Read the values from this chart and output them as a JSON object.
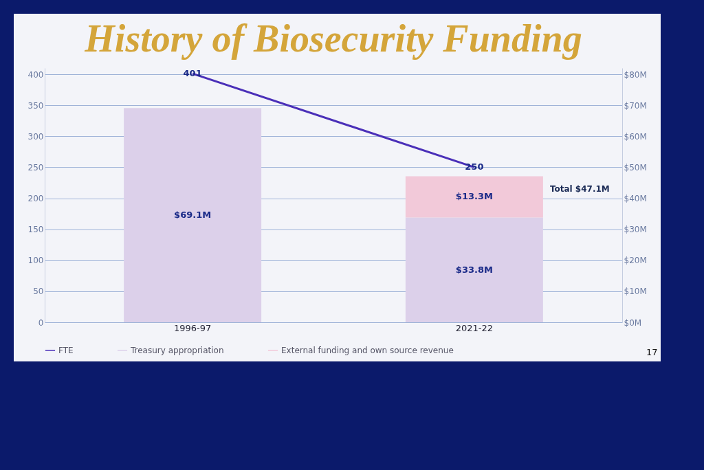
{
  "chart_data": {
    "type": "bar",
    "title": "History of Biosecurity Funding",
    "categories": [
      "1996-97",
      "2021-22"
    ],
    "stacked": true,
    "series": [
      {
        "name": "FTE",
        "type": "line",
        "axis": "y",
        "color": "#4a2fb8",
        "values": [
          401,
          250
        ],
        "value_labels": [
          "401",
          "250"
        ]
      },
      {
        "name": "Treasury appropriation",
        "axis": "y2",
        "color": "#dcd0ea",
        "values": [
          69.1,
          33.8
        ],
        "value_labels": [
          "$69.1M",
          "$33.8M"
        ]
      },
      {
        "name": "External funding and own source revenue",
        "axis": "y2",
        "color": "#f2c9d9",
        "values": [
          null,
          13.3
        ],
        "value_labels": [
          null,
          "$13.3M"
        ]
      }
    ],
    "totals": [
      null,
      "Total $47.1M"
    ],
    "ylim": [
      0,
      410
    ],
    "yticks": [
      0,
      50,
      100,
      150,
      200,
      250,
      300,
      350,
      400
    ],
    "y2lim": [
      0,
      82
    ],
    "y2ticks": [
      {
        "value": 0,
        "label": "$0M"
      },
      {
        "value": 10,
        "label": "$10M"
      },
      {
        "value": 20,
        "label": "$20M"
      },
      {
        "value": 30,
        "label": "$30M"
      },
      {
        "value": 40,
        "label": "$40M"
      },
      {
        "value": 50,
        "label": "$50M"
      },
      {
        "value": 60,
        "label": "$60M"
      },
      {
        "value": 70,
        "label": "$70M"
      },
      {
        "value": 80,
        "label": "$80M"
      }
    ],
    "grid": "y2",
    "legend": "bottom",
    "marker": "none",
    "annotations": [
      "17"
    ]
  }
}
